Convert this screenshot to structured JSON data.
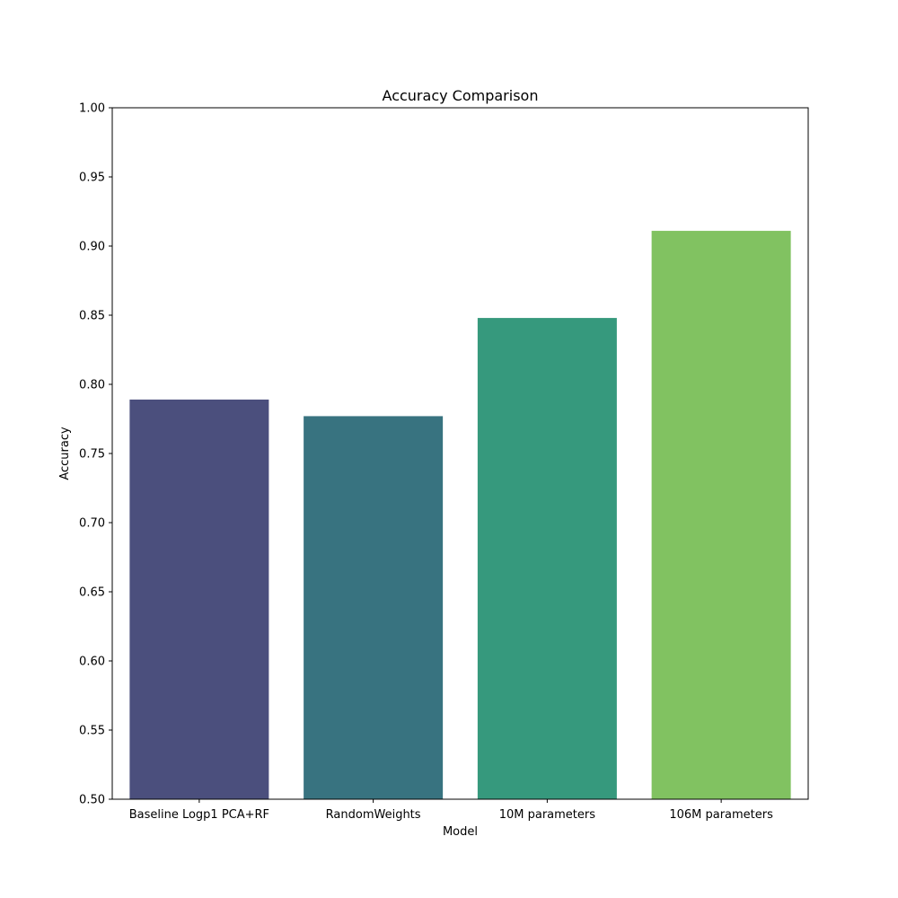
{
  "chart_data": {
    "type": "bar",
    "title": "Accuracy Comparison",
    "xlabel": "Model",
    "ylabel": "Accuracy",
    "categories": [
      "Baseline Logp1 PCA+RF",
      "RandomWeights",
      "10M parameters",
      "106M parameters"
    ],
    "values": [
      0.789,
      0.777,
      0.848,
      0.911
    ],
    "colors": [
      "#4b4f7d",
      "#387380",
      "#36997d",
      "#81c261"
    ],
    "ylim": [
      0.5,
      1.0
    ],
    "yticks": [
      "0.50",
      "0.55",
      "0.60",
      "0.65",
      "0.70",
      "0.75",
      "0.80",
      "0.85",
      "0.90",
      "0.95",
      "1.00"
    ],
    "grid": false,
    "legend": "none"
  }
}
